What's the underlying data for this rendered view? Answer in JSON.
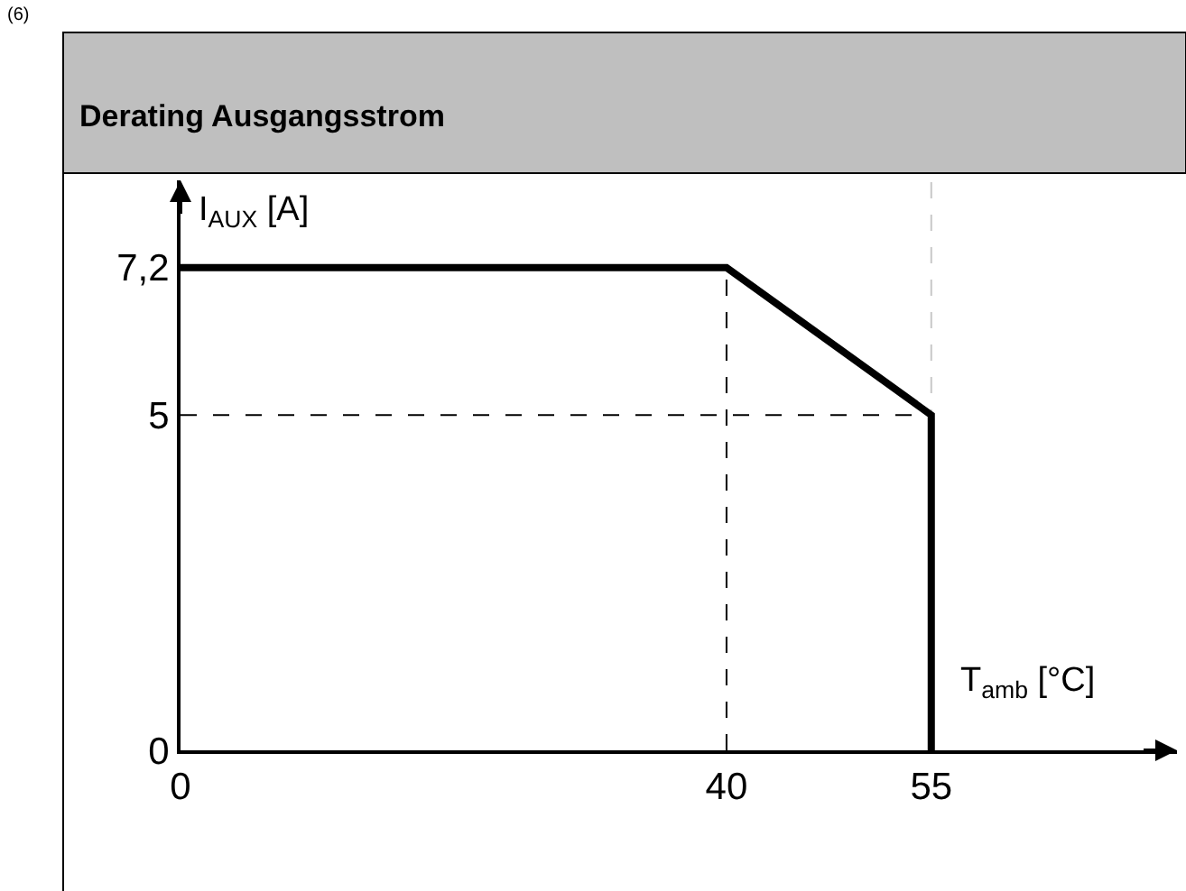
{
  "chart_data": {
    "type": "line",
    "title": "Derating Ausgangsstrom",
    "xlabel": "T$_{amb}$ [°C]",
    "ylabel": "I$_{AUX}$ [A]",
    "x": [
      0,
      40,
      55,
      55
    ],
    "series": [
      {
        "color": "#000000",
        "values": [
          7.2,
          7.2,
          5,
          0
        ]
      }
    ],
    "xlim": [
      0,
      73
    ],
    "ylim": [
      0,
      8.5
    ],
    "xticks": [
      0,
      40,
      55
    ],
    "yticks": [
      0,
      5,
      {
        "value": 7.2,
        "label": "7,2"
      }
    ],
    "grid": false,
    "marker": "none",
    "line_style": "solid",
    "ref_lines": [
      {
        "axis": "x",
        "value": 40,
        "color": "#000000",
        "line_style": "dashed"
      },
      {
        "axis": "y",
        "value": 5,
        "color": "#000000",
        "line_style": "dashed"
      },
      {
        "axis": "x",
        "value": 55,
        "color": "#c8c8c8",
        "line_style": "dashed"
      }
    ],
    "annotations": [
      "(6)"
    ]
  }
}
